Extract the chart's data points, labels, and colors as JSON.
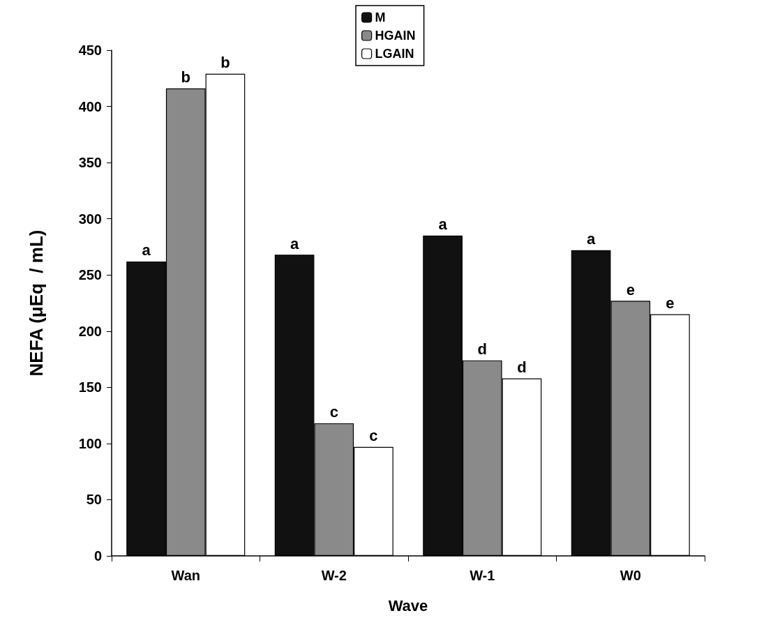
{
  "chart_data": {
    "type": "bar",
    "xlabel": "Wave",
    "ylabel": "NEFA (μEq  / mL)",
    "categories": [
      "Wan",
      "W-2",
      "W-1",
      "W0"
    ],
    "series": [
      {
        "name": "M",
        "color": "#111111",
        "values": [
          262,
          268,
          285,
          272
        ],
        "value_labels": [
          "a",
          "a",
          "a",
          "a"
        ]
      },
      {
        "name": "HGAIN",
        "color": "#8a8a8a",
        "values": [
          416,
          118,
          174,
          227
        ],
        "value_labels": [
          "b",
          "c",
          "d",
          "e"
        ]
      },
      {
        "name": "LGAIN",
        "color": "#ffffff",
        "values": [
          429,
          97,
          158,
          215
        ],
        "value_labels": [
          "b",
          "c",
          "d",
          "e"
        ]
      }
    ],
    "ylim": [
      0,
      450
    ],
    "yticks": [
      0,
      50,
      100,
      150,
      200,
      250,
      300,
      350,
      400,
      450
    ],
    "grid": false,
    "legend": "top"
  }
}
